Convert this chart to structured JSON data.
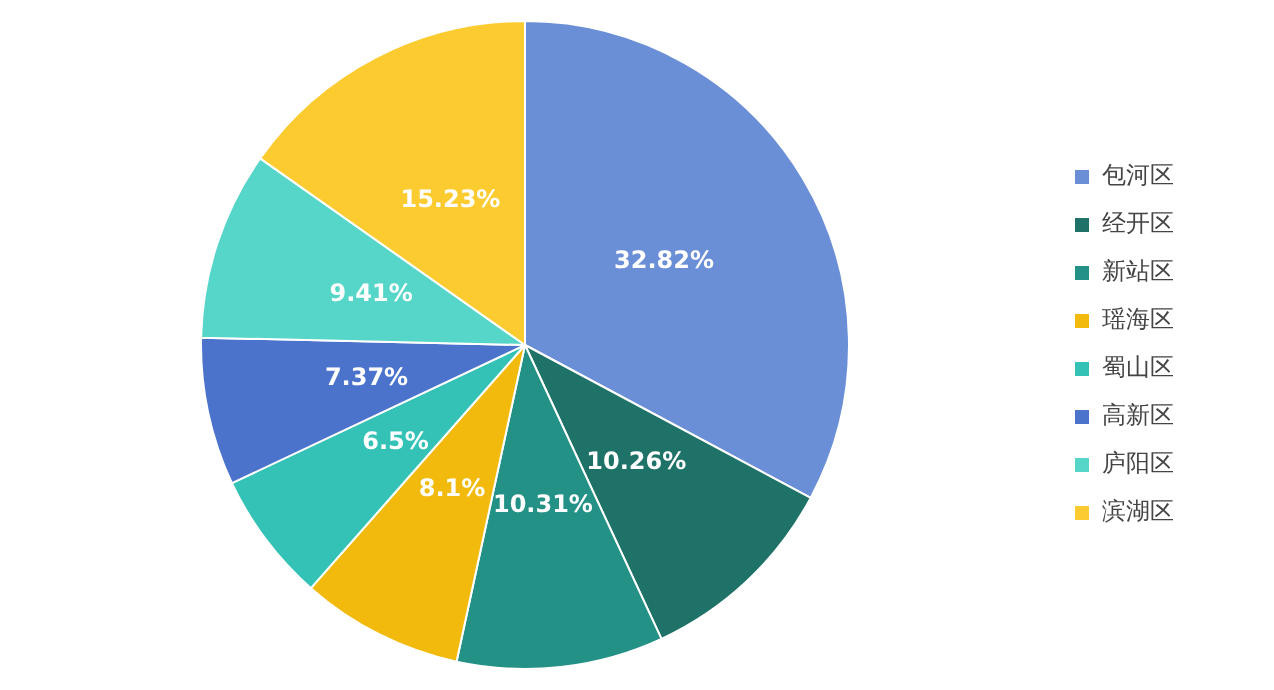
{
  "chart_data": {
    "type": "pie",
    "categories": [
      "包河区",
      "经开区",
      "新站区",
      "瑶海区",
      "蜀山区",
      "高新区",
      "庐阳区",
      "滨湖区"
    ],
    "values": [
      32.82,
      10.26,
      10.31,
      8.1,
      6.5,
      7.37,
      9.41,
      15.23
    ],
    "value_labels": [
      "32.82%",
      "10.26%",
      "10.31%",
      "8.1%",
      "6.5%",
      "7.37%",
      "9.41%",
      "15.23%"
    ],
    "colors": [
      "#6b8fd6",
      "#1e7268",
      "#239186",
      "#f1ba0c",
      "#33c2b5",
      "#4b73cc",
      "#56d6c8",
      "#fccb2f"
    ],
    "legend": "right"
  }
}
